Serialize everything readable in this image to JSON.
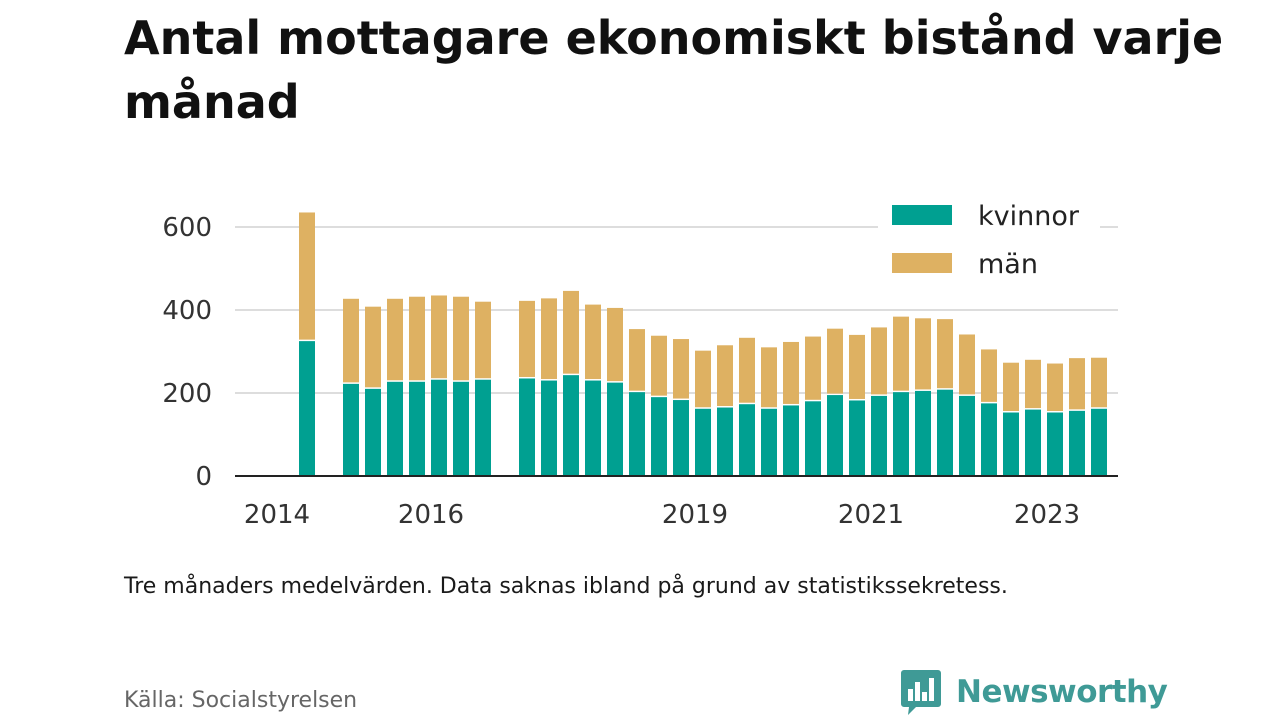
{
  "title": "Antal mottagare ekonomiskt bistånd varje månad",
  "note": "Tre månaders medelvärden. Data saknas ibland på grund av statistikssekretess.",
  "source": "Källa: Socialstyrelsen",
  "brand": {
    "name": "Newsworthy",
    "color": "#3f9a96",
    "icon": "bar-chart-speech-bubble-icon"
  },
  "chart_data": {
    "type": "bar",
    "stacked": true,
    "title": "Antal mottagare ekonomiskt bistånd varje månad",
    "xlabel": "",
    "ylabel": "",
    "ylim": [
      0,
      650
    ],
    "yticks": [
      0,
      200,
      400,
      600
    ],
    "xtick_labels": [
      "2014",
      "2016",
      "2019",
      "2021",
      "2023"
    ],
    "grid": "horizontal",
    "legend_position": "top-right",
    "slots": 37,
    "x": [
      1,
      3,
      4,
      5,
      6,
      7,
      8,
      9,
      11,
      12,
      13,
      14,
      15,
      16,
      17,
      18,
      19,
      20,
      21,
      22,
      23,
      24,
      25,
      26,
      27,
      28,
      29,
      30,
      31,
      32,
      33,
      34,
      35,
      36,
      37
    ],
    "xtick_positions": [
      0,
      7,
      19,
      27,
      35
    ],
    "series": [
      {
        "name": "kvinnor",
        "color": "#00a091",
        "values": [
          325,
          222,
          210,
          227,
          227,
          232,
          227,
          232,
          235,
          230,
          243,
          230,
          225,
          202,
          190,
          183,
          162,
          165,
          173,
          162,
          170,
          180,
          195,
          182,
          193,
          202,
          205,
          208,
          193,
          175,
          153,
          160,
          153,
          157,
          162
        ]
      },
      {
        "name": "män",
        "color": "#deb162",
        "values": [
          310,
          205,
          198,
          200,
          205,
          203,
          205,
          188,
          187,
          198,
          203,
          183,
          180,
          152,
          148,
          147,
          140,
          150,
          160,
          148,
          153,
          156,
          160,
          158,
          165,
          182,
          175,
          170,
          148,
          130,
          120,
          120,
          118,
          127,
          123
        ]
      }
    ]
  }
}
